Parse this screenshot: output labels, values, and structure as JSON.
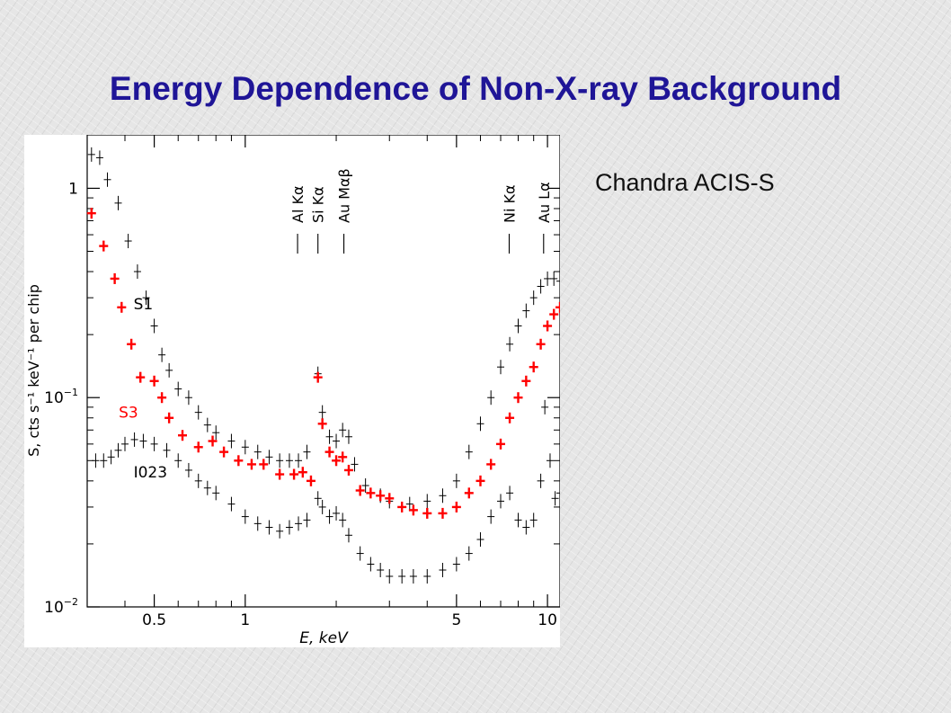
{
  "slide": {
    "title": "Energy Dependence of Non-X-ray Background",
    "subtitle": "Chandra ACIS-S"
  },
  "colors": {
    "title": "#1f1597",
    "series_S1": "#000000",
    "series_S3": "#ff0000",
    "series_I023": "#000000"
  },
  "chart_data": {
    "type": "scatter",
    "title": "",
    "xlabel": "E, keV",
    "ylabel": "S, cts s⁻¹ keV⁻¹ per chip",
    "xscale": "log",
    "yscale": "log",
    "xlim": [
      0.3,
      11
    ],
    "ylim": [
      0.01,
      1.8
    ],
    "xticks": [
      {
        "value": 0.5,
        "label": "0.5"
      },
      {
        "value": 1,
        "label": "1"
      },
      {
        "value": 5,
        "label": "5"
      },
      {
        "value": 10,
        "label": "10"
      }
    ],
    "yticks": [
      {
        "value": 1,
        "label": "1",
        "sup": ""
      },
      {
        "value": 0.1,
        "label": "10",
        "sup": "−1"
      },
      {
        "value": 0.01,
        "label": "10",
        "sup": "−2"
      }
    ],
    "line_markers": [
      {
        "label": "Al Kα",
        "energy": 1.49
      },
      {
        "label": "Si Kα",
        "energy": 1.74
      },
      {
        "label": "Au Mαβ",
        "energy": 2.12
      },
      {
        "label": "Ni Kα",
        "energy": 7.47
      },
      {
        "label": "Au Lα",
        "energy": 9.71
      }
    ],
    "series": [
      {
        "name": "S1",
        "label_at": [
          0.47,
          0.28
        ],
        "points": [
          [
            0.31,
            1.45
          ],
          [
            0.33,
            1.4
          ],
          [
            0.35,
            1.1
          ],
          [
            0.38,
            0.85
          ],
          [
            0.41,
            0.56
          ],
          [
            0.44,
            0.4
          ],
          [
            0.47,
            0.3
          ],
          [
            0.5,
            0.22
          ],
          [
            0.53,
            0.16
          ],
          [
            0.56,
            0.135
          ],
          [
            0.6,
            0.11
          ],
          [
            0.65,
            0.1
          ],
          [
            0.7,
            0.085
          ],
          [
            0.75,
            0.074
          ],
          [
            0.8,
            0.068
          ],
          [
            0.9,
            0.062
          ],
          [
            1.0,
            0.058
          ],
          [
            1.1,
            0.055
          ],
          [
            1.2,
            0.052
          ],
          [
            1.3,
            0.05
          ],
          [
            1.4,
            0.05
          ],
          [
            1.5,
            0.05
          ],
          [
            1.6,
            0.055
          ],
          [
            1.74,
            0.13
          ],
          [
            1.8,
            0.085
          ],
          [
            1.9,
            0.065
          ],
          [
            2.0,
            0.062
          ],
          [
            2.1,
            0.07
          ],
          [
            2.2,
            0.065
          ],
          [
            2.3,
            0.048
          ],
          [
            2.5,
            0.038
          ],
          [
            2.8,
            0.034
          ],
          [
            3.0,
            0.032
          ],
          [
            3.5,
            0.031
          ],
          [
            4.0,
            0.032
          ],
          [
            4.5,
            0.034
          ],
          [
            5.0,
            0.04
          ],
          [
            5.5,
            0.055
          ],
          [
            6.0,
            0.075
          ],
          [
            6.5,
            0.1
          ],
          [
            7.0,
            0.14
          ],
          [
            7.5,
            0.18
          ],
          [
            8.0,
            0.22
          ],
          [
            8.5,
            0.26
          ],
          [
            9.0,
            0.3
          ],
          [
            9.5,
            0.34
          ],
          [
            10.0,
            0.37
          ],
          [
            10.5,
            0.37
          ],
          [
            11.0,
            0.36
          ]
        ]
      },
      {
        "name": "S3",
        "label_at": [
          0.42,
          0.085
        ],
        "points": [
          [
            0.31,
            0.76
          ],
          [
            0.34,
            0.53
          ],
          [
            0.37,
            0.37
          ],
          [
            0.39,
            0.27
          ],
          [
            0.42,
            0.18
          ],
          [
            0.45,
            0.125
          ],
          [
            0.5,
            0.12
          ],
          [
            0.53,
            0.1
          ],
          [
            0.56,
            0.08
          ],
          [
            0.62,
            0.066
          ],
          [
            0.7,
            0.058
          ],
          [
            0.78,
            0.062
          ],
          [
            0.85,
            0.055
          ],
          [
            0.95,
            0.05
          ],
          [
            1.05,
            0.048
          ],
          [
            1.15,
            0.048
          ],
          [
            1.3,
            0.043
          ],
          [
            1.45,
            0.043
          ],
          [
            1.55,
            0.044
          ],
          [
            1.65,
            0.04
          ],
          [
            1.74,
            0.125
          ],
          [
            1.8,
            0.075
          ],
          [
            1.9,
            0.055
          ],
          [
            2.0,
            0.05
          ],
          [
            2.1,
            0.052
          ],
          [
            2.2,
            0.045
          ],
          [
            2.4,
            0.036
          ],
          [
            2.6,
            0.035
          ],
          [
            2.8,
            0.034
          ],
          [
            3.0,
            0.033
          ],
          [
            3.3,
            0.03
          ],
          [
            3.6,
            0.029
          ],
          [
            4.0,
            0.028
          ],
          [
            4.5,
            0.028
          ],
          [
            5.0,
            0.03
          ],
          [
            5.5,
            0.035
          ],
          [
            6.0,
            0.04
          ],
          [
            6.5,
            0.048
          ],
          [
            7.0,
            0.06
          ],
          [
            7.5,
            0.08
          ],
          [
            8.0,
            0.1
          ],
          [
            8.5,
            0.12
          ],
          [
            9.0,
            0.14
          ],
          [
            9.5,
            0.18
          ],
          [
            10.0,
            0.22
          ],
          [
            10.5,
            0.25
          ],
          [
            11.0,
            0.27
          ]
        ]
      },
      {
        "name": "I023",
        "label_at": [
          0.47,
          0.044
        ],
        "points": [
          [
            0.32,
            0.05
          ],
          [
            0.34,
            0.05
          ],
          [
            0.36,
            0.052
          ],
          [
            0.38,
            0.056
          ],
          [
            0.4,
            0.06
          ],
          [
            0.43,
            0.063
          ],
          [
            0.46,
            0.062
          ],
          [
            0.5,
            0.06
          ],
          [
            0.55,
            0.056
          ],
          [
            0.6,
            0.05
          ],
          [
            0.65,
            0.045
          ],
          [
            0.7,
            0.04
          ],
          [
            0.75,
            0.037
          ],
          [
            0.8,
            0.035
          ],
          [
            0.9,
            0.031
          ],
          [
            1.0,
            0.027
          ],
          [
            1.1,
            0.025
          ],
          [
            1.2,
            0.024
          ],
          [
            1.3,
            0.023
          ],
          [
            1.4,
            0.024
          ],
          [
            1.5,
            0.025
          ],
          [
            1.6,
            0.026
          ],
          [
            1.74,
            0.033
          ],
          [
            1.8,
            0.03
          ],
          [
            1.9,
            0.027
          ],
          [
            2.0,
            0.028
          ],
          [
            2.1,
            0.026
          ],
          [
            2.2,
            0.022
          ],
          [
            2.4,
            0.018
          ],
          [
            2.6,
            0.016
          ],
          [
            2.8,
            0.015
          ],
          [
            3.0,
            0.014
          ],
          [
            3.3,
            0.014
          ],
          [
            3.6,
            0.014
          ],
          [
            4.0,
            0.014
          ],
          [
            4.5,
            0.015
          ],
          [
            5.0,
            0.016
          ],
          [
            5.5,
            0.018
          ],
          [
            6.0,
            0.021
          ],
          [
            6.5,
            0.027
          ],
          [
            7.0,
            0.032
          ],
          [
            7.5,
            0.035
          ],
          [
            8.0,
            0.026
          ],
          [
            8.5,
            0.024
          ],
          [
            9.0,
            0.026
          ],
          [
            9.5,
            0.04
          ],
          [
            9.8,
            0.09
          ],
          [
            10.2,
            0.05
          ],
          [
            10.6,
            0.033
          ],
          [
            11.0,
            0.035
          ]
        ]
      }
    ]
  }
}
